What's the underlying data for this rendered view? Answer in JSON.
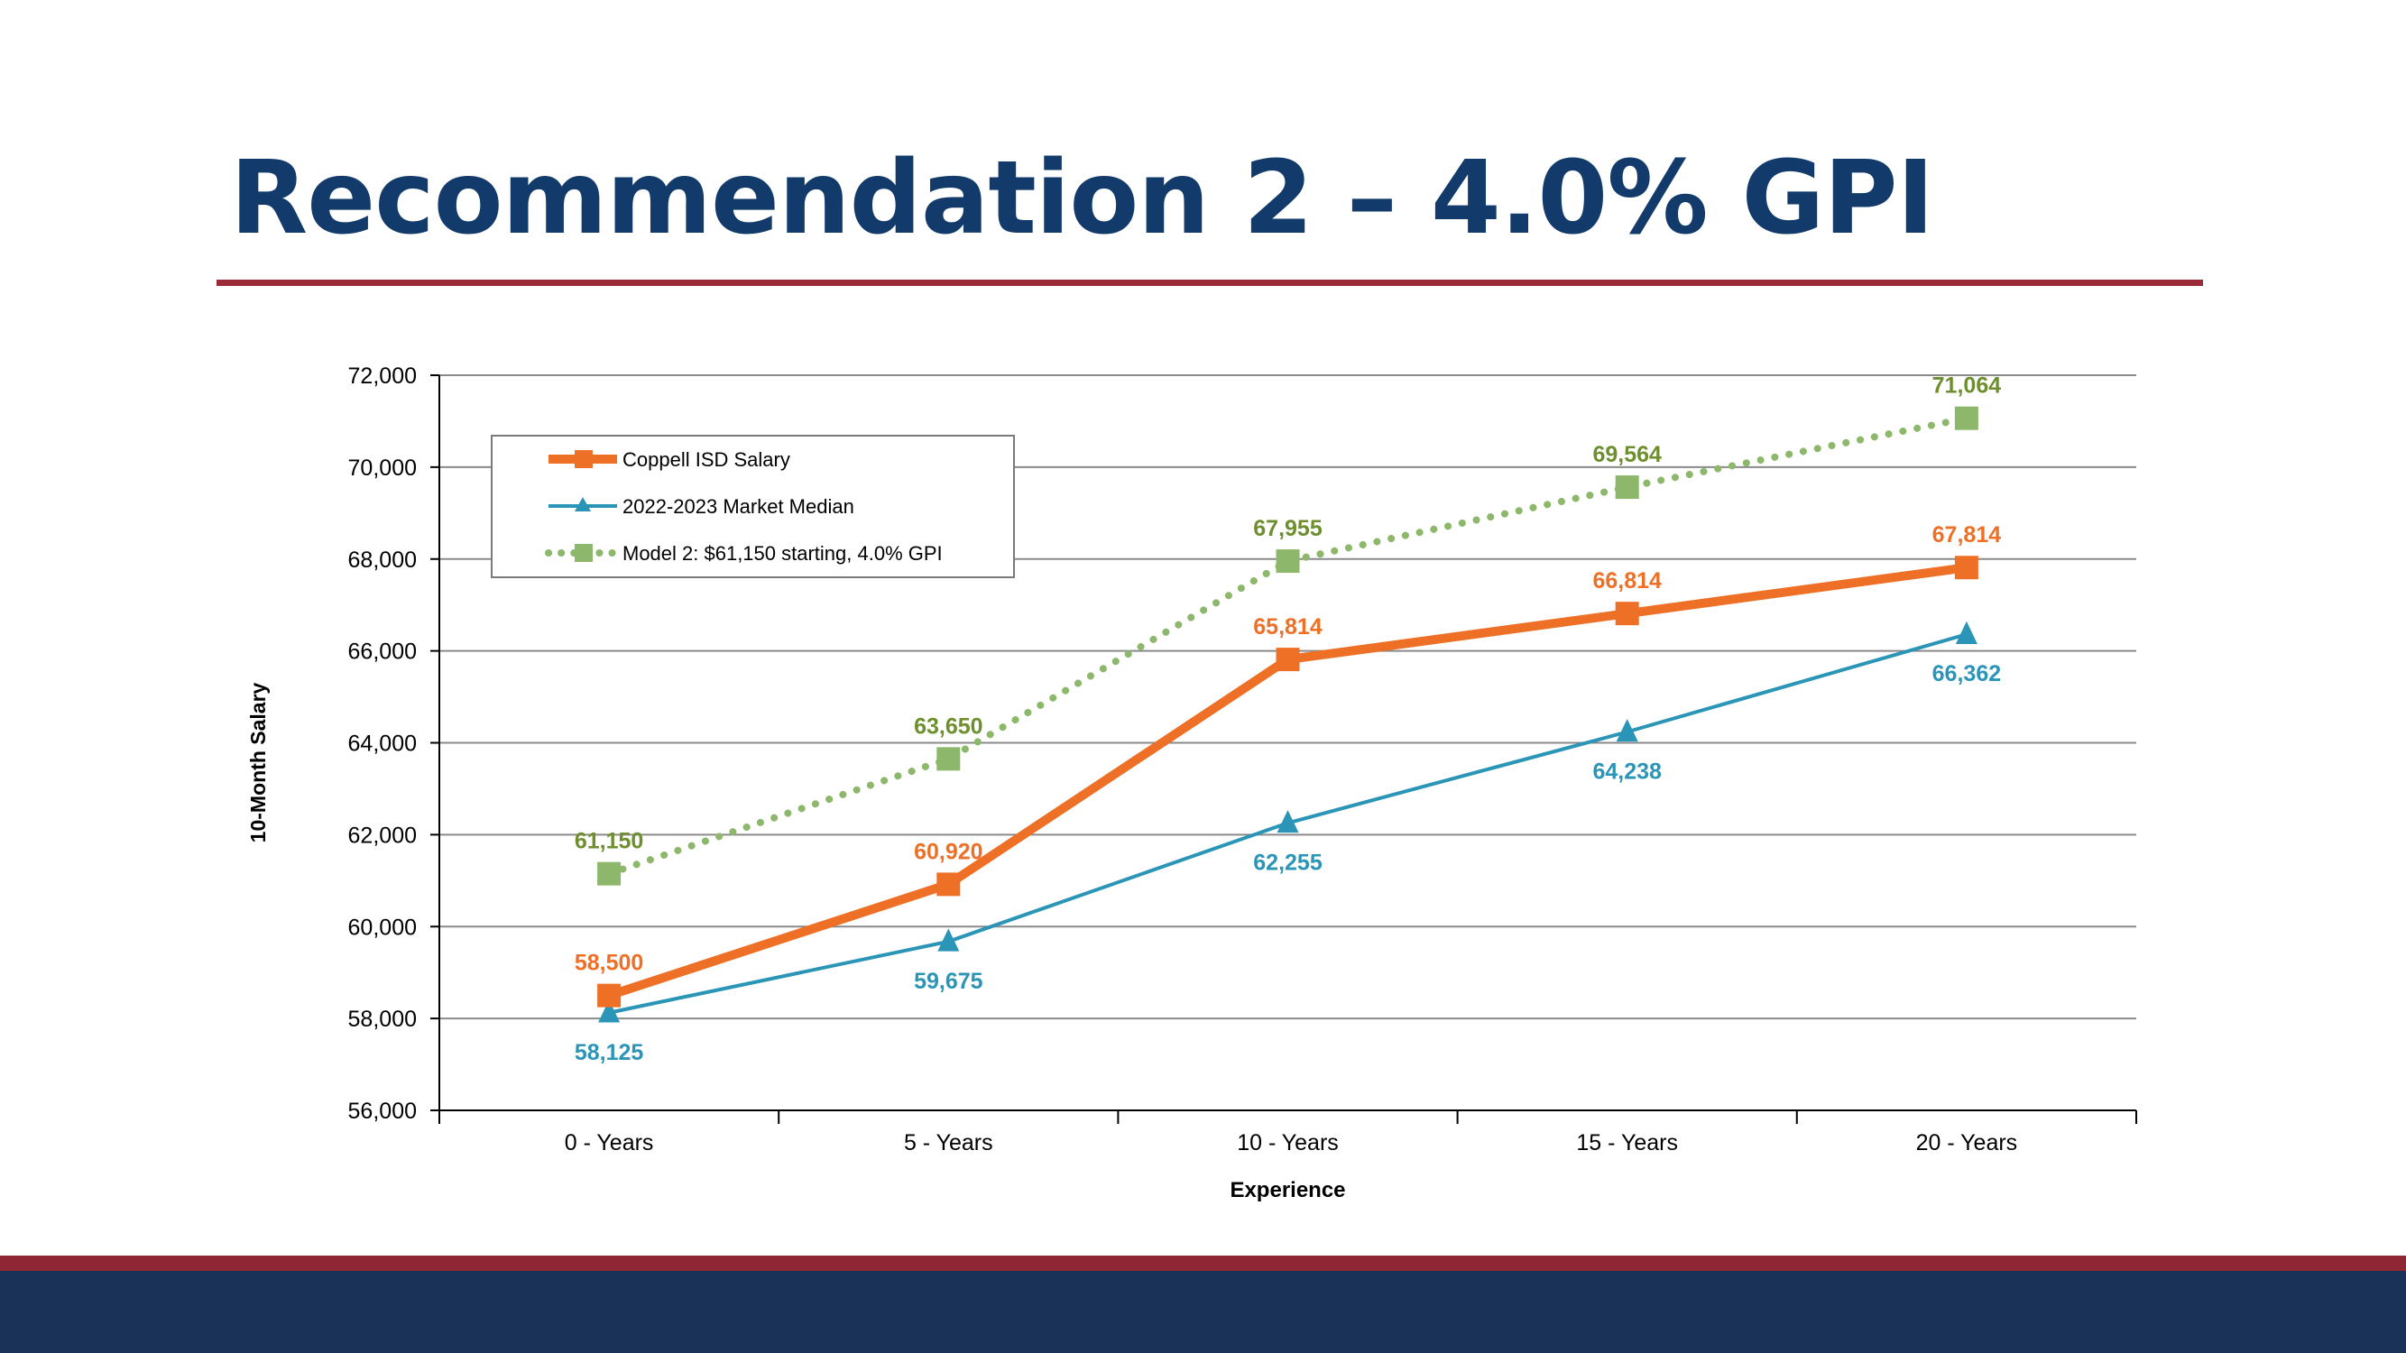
{
  "slide": {
    "title": "Recommendation 2 – 4.0% GPI"
  },
  "colors": {
    "title": "#123a6b",
    "rule": "#9a2a35",
    "footer_stripe": "#8f2633",
    "footer_band": "#1a3258",
    "coppell": "#ee7027",
    "market": "#2a95b6",
    "model2": "#8db86b",
    "model2_label": "#6e8f2e"
  },
  "chart_data": {
    "type": "line",
    "xlabel": "Experience",
    "ylabel": "10-Month Salary",
    "ylim": [
      56000,
      72000
    ],
    "yticks": [
      56000,
      58000,
      60000,
      62000,
      64000,
      66000,
      68000,
      70000,
      72000
    ],
    "grid": true,
    "legend_position": "top-left",
    "categories": [
      "0 - Years",
      "5 - Years",
      "10 - Years",
      "15 - Years",
      "20 - Years"
    ],
    "series": [
      {
        "name": "Coppell ISD Salary",
        "values": [
          58500,
          60920,
          65814,
          66814,
          67814
        ],
        "labels": [
          "58,500",
          "60,920",
          "65,814",
          "66,814",
          "67,814"
        ],
        "color": "#ee7027",
        "marker": "square",
        "style": "solid-thick",
        "label_position": "above"
      },
      {
        "name": "2022-2023 Market Median",
        "values": [
          58125,
          59675,
          62255,
          64238,
          66362
        ],
        "labels": [
          "58,125",
          "59,675",
          "62,255",
          "64,238",
          "66,362"
        ],
        "color": "#2a95b6",
        "marker": "triangle",
        "style": "solid-thin",
        "label_position": "below"
      },
      {
        "name": "Model 2: $61,150 starting, 4.0% GPI",
        "values": [
          61150,
          63650,
          67955,
          69564,
          71064
        ],
        "labels": [
          "61,150",
          "63,650",
          "67,955",
          "69,564",
          "71,064"
        ],
        "color": "#8db86b",
        "label_color": "#6e8f2e",
        "marker": "square",
        "style": "dotted",
        "label_position": "above"
      }
    ]
  }
}
